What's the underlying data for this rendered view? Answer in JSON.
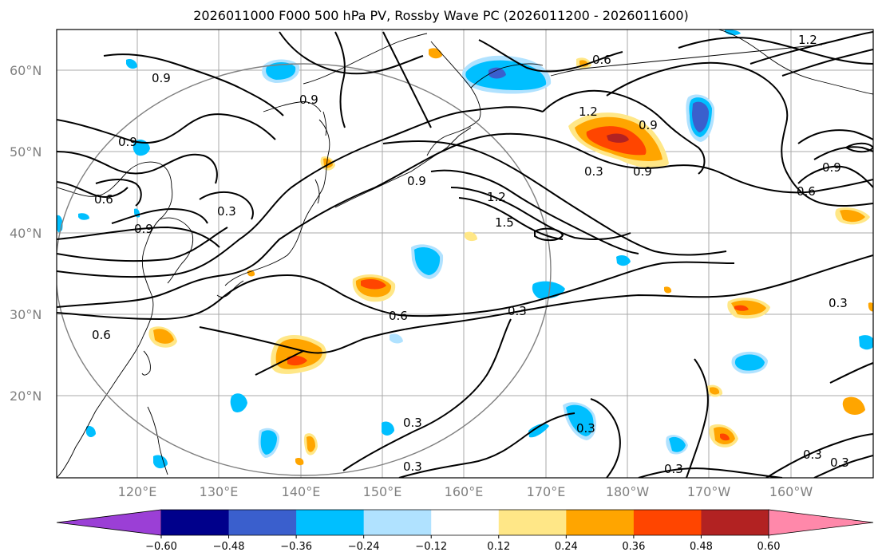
{
  "title": "2026011000 F000 500 hPa PV, Rossby Wave PC (2026011200 - 2026011600)",
  "lat_labels": [
    "60°N",
    "50°N",
    "40°N",
    "30°N",
    "20°N"
  ],
  "lon_labels": [
    "120°E",
    "130°E",
    "140°E",
    "150°E",
    "160°E",
    "170°E",
    "180°W",
    "170°W",
    "160°W"
  ],
  "colorbar": {
    "ticks": [
      "−0.60",
      "−0.48",
      "−0.36",
      "−0.24",
      "−0.12",
      "0.12",
      "0.24",
      "0.36",
      "0.48",
      "0.60"
    ],
    "colors": [
      "#9b3fd6",
      "#00008b",
      "#3a5fcd",
      "#00bfff",
      "#b0e2ff",
      "#ffffff",
      "#ffe787",
      "#ffa500",
      "#ff4500",
      "#b22222",
      "#ff88aa"
    ]
  },
  "contour_labels": [
    "0.9",
    "0.9",
    "0.9",
    "0.6",
    "0.9",
    "0.3",
    "0.9",
    "1.2",
    "1.5",
    "1.2",
    "0.9",
    "0.6",
    "0.3",
    "0.9",
    "0.3",
    "0.6",
    "0.3",
    "0.3",
    "0.3",
    "0.3",
    "0.3",
    "0.3",
    "0.6",
    "0.3",
    "0.6",
    "0.9",
    "1.2"
  ]
}
